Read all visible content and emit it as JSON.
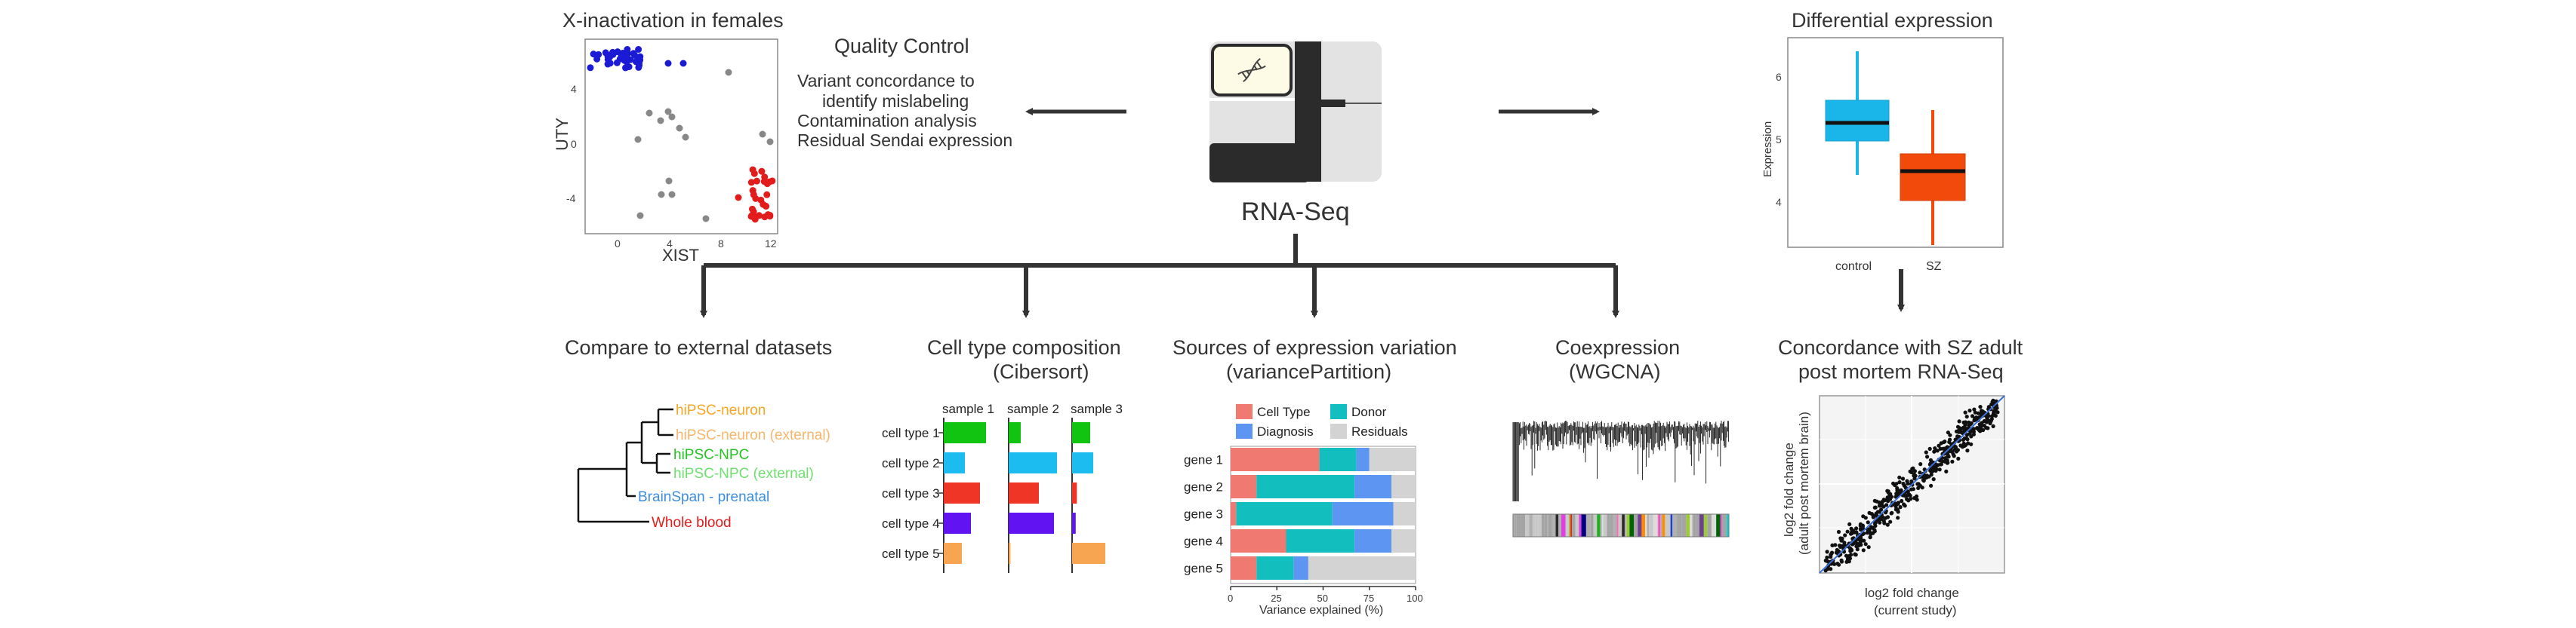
{
  "center": {
    "label": "RNA-Seq"
  },
  "x_inactivation": {
    "title": "X-inactivation in females",
    "xlabel": "XIST",
    "ylabel": "UTY",
    "xticks": [
      "0",
      "4",
      "8",
      "12"
    ],
    "yticks": [
      "4",
      "0",
      "-4"
    ]
  },
  "quality_control": {
    "title": "Quality Control",
    "lines": [
      "Variant concordance to",
      "identify mislabeling",
      "Contamination analysis",
      "Residual Sendai expression"
    ]
  },
  "differential_expression": {
    "title": "Differential expression",
    "ylabel": "Expression",
    "yticks": [
      "6",
      "5",
      "4"
    ],
    "groups": [
      "control",
      "SZ"
    ],
    "colors": {
      "control": "#1ab6ea",
      "SZ": "#f24a0a"
    }
  },
  "external_datasets": {
    "title": "Compare to external datasets",
    "leaves": [
      {
        "label": "hiPSC-neuron",
        "color": "#f5a623"
      },
      {
        "label": "hiPSC-neuron (external)",
        "color": "#f9b56b"
      },
      {
        "label": "hiPSC-NPC",
        "color": "#22c322"
      },
      {
        "label": "hiPSC-NPC (external)",
        "color": "#6fe06f"
      },
      {
        "label": "BrainSpan - prenatal",
        "color": "#3b8de0"
      },
      {
        "label": "Whole blood",
        "color": "#e21b1b"
      }
    ]
  },
  "cell_type": {
    "title_line1": "Cell type composition",
    "title_line2": "(Cibersort)",
    "samples": [
      "sample 1",
      "sample 2",
      "sample 3"
    ],
    "rows": [
      "cell type 1",
      "cell type 2",
      "cell type 3",
      "cell type 4",
      "cell type 5"
    ],
    "colors": [
      "#11c411",
      "#1cbcf0",
      "#ee3526",
      "#6213f2",
      "#f8a552"
    ],
    "values": [
      [
        0.7,
        0.2,
        0.3
      ],
      [
        0.35,
        0.8,
        0.35
      ],
      [
        0.6,
        0.5,
        0.08
      ],
      [
        0.45,
        0.75,
        0.06
      ],
      [
        0.3,
        0.03,
        0.55
      ]
    ]
  },
  "variance_partition": {
    "title_line1": "Sources of expression variation",
    "title_line2": "(variancePartition)",
    "legend": [
      {
        "label": "Cell Type",
        "color": "#f07a72"
      },
      {
        "label": "Donor",
        "color": "#13bfbe"
      },
      {
        "label": "Diagnosis",
        "color": "#5c96f2"
      },
      {
        "label": "Residuals",
        "color": "#d3d3d3"
      }
    ],
    "genes": [
      "gene 1",
      "gene 2",
      "gene 3",
      "gene 4",
      "gene 5"
    ],
    "values": [
      [
        48,
        20,
        7,
        25
      ],
      [
        14,
        53,
        20,
        13
      ],
      [
        3,
        52,
        33,
        12
      ],
      [
        30,
        37,
        20,
        13
      ],
      [
        14,
        20,
        8,
        58
      ]
    ],
    "xticks": [
      "0",
      "25",
      "50",
      "75",
      "100"
    ],
    "xlabel": "Variance explained (%)"
  },
  "coexpression": {
    "title_line1": "Coexpression",
    "title_line2": "(WGCNA)"
  },
  "concordance": {
    "title_line1": "Concordance with SZ adult",
    "title_line2": "post mortem RNA-Seq",
    "ylabel_line1": "log2 fold change",
    "ylabel_line2": "(adult post mortem brain)",
    "xlabel_line1": "log2 fold change",
    "xlabel_line2": "(current study)"
  }
}
